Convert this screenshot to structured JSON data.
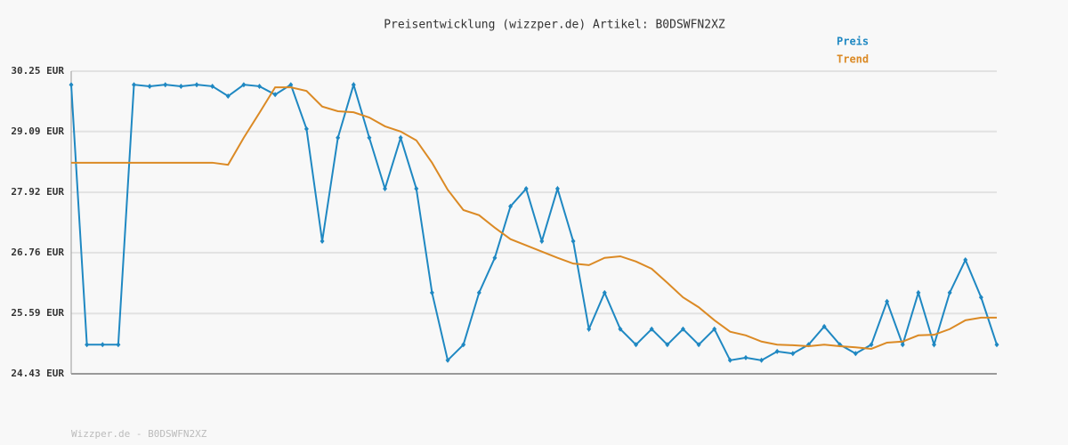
{
  "chart_data": {
    "type": "line",
    "title": "Preisentwicklung (wizzper.de) Artikel: B0DSWFN2XZ",
    "footer": "Wizzper.de - B0DSWFN2XZ",
    "categories": [
      null,
      null,
      null,
      null,
      null,
      null,
      null,
      null,
      null,
      null,
      null,
      null,
      null,
      null,
      null,
      null,
      null,
      null,
      null,
      null,
      null,
      null,
      null,
      null,
      null,
      null,
      null,
      null,
      null,
      null,
      null,
      null,
      null,
      null,
      null,
      null,
      null,
      null,
      null,
      null,
      null,
      null,
      null,
      null,
      null,
      null,
      null,
      null,
      null,
      null,
      null,
      null,
      null,
      null,
      null,
      null,
      null,
      null,
      null,
      null
    ],
    "series": [
      {
        "name": "Preis",
        "color": "#1f88c2",
        "markers": true,
        "values": [
          29.99,
          24.99,
          24.99,
          24.99,
          29.99,
          29.96,
          29.99,
          29.96,
          29.99,
          29.96,
          29.77,
          29.99,
          29.96,
          29.8,
          29.99,
          29.14,
          26.98,
          28.97,
          29.99,
          28.97,
          27.99,
          28.97,
          27.99,
          25.99,
          24.69,
          24.99,
          25.99,
          26.66,
          27.65,
          27.99,
          26.98,
          27.99,
          26.98,
          25.29,
          25.99,
          25.29,
          24.99,
          25.29,
          24.99,
          25.29,
          24.99,
          25.29,
          24.69,
          24.74,
          24.69,
          24.86,
          24.82,
          24.99,
          25.34,
          24.99,
          24.82,
          24.99,
          25.82,
          24.99,
          25.99,
          24.99,
          25.99,
          26.62,
          25.9,
          24.99
        ]
      },
      {
        "name": "Trend",
        "color": "#db8a25",
        "markers": false,
        "values": [
          28.49,
          28.49,
          28.49,
          28.49,
          28.49,
          28.49,
          28.49,
          28.49,
          28.49,
          28.49,
          28.45,
          28.97,
          29.45,
          29.94,
          29.94,
          29.87,
          29.57,
          29.48,
          29.46,
          29.36,
          29.19,
          29.09,
          28.92,
          28.49,
          27.97,
          27.58,
          27.48,
          27.24,
          27.02,
          26.9,
          26.78,
          26.66,
          26.55,
          26.52,
          26.66,
          26.69,
          26.59,
          26.45,
          26.18,
          25.9,
          25.71,
          25.46,
          25.24,
          25.17,
          25.05,
          24.99,
          24.98,
          24.96,
          24.99,
          24.96,
          24.94,
          24.91,
          25.03,
          25.05,
          25.17,
          25.18,
          25.29,
          25.46,
          25.51,
          25.51
        ]
      }
    ],
    "ylim": [
      24.43,
      30.25
    ],
    "yticks": [
      {
        "value": 24.43,
        "label": "24.43 EUR"
      },
      {
        "value": 25.59,
        "label": "25.59 EUR"
      },
      {
        "value": 26.76,
        "label": "26.76 EUR"
      },
      {
        "value": 27.92,
        "label": "27.92 EUR"
      },
      {
        "value": 29.09,
        "label": "29.09 EUR"
      },
      {
        "value": 30.25,
        "label": "30.25 EUR"
      }
    ],
    "grid": true
  }
}
